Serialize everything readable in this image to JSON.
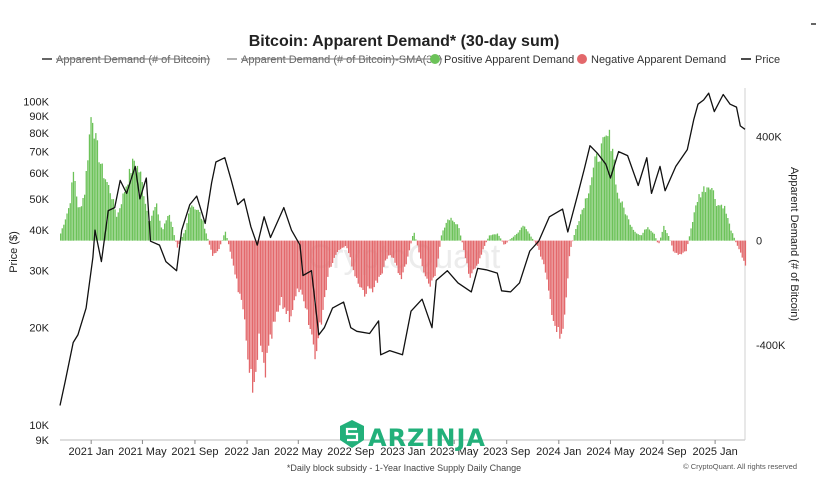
{
  "chart_data": {
    "type": "bar",
    "title": "Bitcoin: Apparent Demand* (30-day sum)",
    "footnote": "*Daily block subsidy - 1-Year Inactive Supply Daily Change",
    "credit": "© CryptoQuant. All rights reserved",
    "watermark": "CryptoQuant",
    "logo_text": "ARZINJA",
    "legend": [
      {
        "label": "Apparent Demand (# of Bitcoin)",
        "marker": "line",
        "color": "#333333",
        "struck": true
      },
      {
        "label": "Apparent Demand (# of Bitcoin)-SMA(30)",
        "marker": "line",
        "color": "#999999",
        "struck": true
      },
      {
        "label": "Positive Apparent Demand",
        "marker": "dot",
        "color": "#6cc259"
      },
      {
        "label": "Negative Apparent Demand",
        "marker": "dot",
        "color": "#e3686b"
      },
      {
        "label": "Price",
        "marker": "line",
        "color": "#111111"
      }
    ],
    "legend_position": "top",
    "colors": {
      "positive": "#6cc259",
      "negative": "#e3686b",
      "price": "#111111"
    },
    "ylabel_left": "Price ($)",
    "ylabel_right": "Apparent Demand (# of Bitcoin)",
    "y_left": {
      "scale": "log",
      "range": [
        9000,
        110000
      ],
      "ticks": [
        {
          "value": 9000,
          "label": "9K"
        },
        {
          "value": 10000,
          "label": "10K"
        },
        {
          "value": 20000,
          "label": "20K"
        },
        {
          "value": 30000,
          "label": "30K"
        },
        {
          "value": 40000,
          "label": "40K"
        },
        {
          "value": 50000,
          "label": "50K"
        },
        {
          "value": 60000,
          "label": "60K"
        },
        {
          "value": 70000,
          "label": "70K"
        },
        {
          "value": 80000,
          "label": "80K"
        },
        {
          "value": 90000,
          "label": "90K"
        },
        {
          "value": 100000,
          "label": "100K"
        }
      ]
    },
    "y_right": {
      "scale": "linear",
      "range": [
        -764000,
        585000
      ],
      "ticks": [
        {
          "value": 400000,
          "label": "400K"
        },
        {
          "value": 0,
          "label": "0"
        },
        {
          "value": -400000,
          "label": "-400K"
        }
      ]
    },
    "x_range": [
      "2020-10-20",
      "2025-03-12"
    ],
    "x_ticks": [
      {
        "date": "2021-01-01",
        "label": "2021 Jan"
      },
      {
        "date": "2021-05-01",
        "label": "2021 May"
      },
      {
        "date": "2021-09-01",
        "label": "2021 Sep"
      },
      {
        "date": "2022-01-01",
        "label": "2022 Jan"
      },
      {
        "date": "2022-05-01",
        "label": "2022 May"
      },
      {
        "date": "2022-09-01",
        "label": "2022 Sep"
      },
      {
        "date": "2023-01-01",
        "label": "2023 Jan"
      },
      {
        "date": "2023-05-01",
        "label": "2023 May"
      },
      {
        "date": "2023-09-01",
        "label": "2023 Sep"
      },
      {
        "date": "2024-01-01",
        "label": "2024 Jan"
      },
      {
        "date": "2024-05-01",
        "label": "2024 May"
      },
      {
        "date": "2024-09-01",
        "label": "2024 Sep"
      },
      {
        "date": "2025-01-01",
        "label": "2025 Jan"
      }
    ],
    "series": [
      {
        "name": "Apparent Demand (# of Bitcoin)",
        "chart": "bar",
        "axis": "right",
        "points": [
          [
            "2020-10-20",
            30000
          ],
          [
            "2020-11-10",
            150000
          ],
          [
            "2020-11-20",
            300000
          ],
          [
            "2020-12-01",
            120000
          ],
          [
            "2020-12-15",
            200000
          ],
          [
            "2021-01-01",
            560000
          ],
          [
            "2021-01-10",
            420000
          ],
          [
            "2021-01-25",
            300000
          ],
          [
            "2021-02-15",
            200000
          ],
          [
            "2021-03-01",
            100000
          ],
          [
            "2021-03-25",
            250000
          ],
          [
            "2021-04-10",
            340000
          ],
          [
            "2021-04-25",
            280000
          ],
          [
            "2021-05-15",
            80000
          ],
          [
            "2021-06-01",
            150000
          ],
          [
            "2021-06-15",
            40000
          ],
          [
            "2021-07-01",
            120000
          ],
          [
            "2021-07-20",
            -30000
          ],
          [
            "2021-08-10",
            50000
          ],
          [
            "2021-08-20",
            160000
          ],
          [
            "2021-09-10",
            120000
          ],
          [
            "2021-09-20",
            70000
          ],
          [
            "2021-10-10",
            -60000
          ],
          [
            "2021-10-25",
            -40000
          ],
          [
            "2021-11-10",
            40000
          ],
          [
            "2021-12-01",
            -120000
          ],
          [
            "2021-12-20",
            -300000
          ],
          [
            "2022-01-05",
            -520000
          ],
          [
            "2022-01-15",
            -680000
          ],
          [
            "2022-01-28",
            -420000
          ],
          [
            "2022-02-10",
            -560000
          ],
          [
            "2022-03-01",
            -380000
          ],
          [
            "2022-03-20",
            -260000
          ],
          [
            "2022-04-10",
            -320000
          ],
          [
            "2022-05-01",
            -200000
          ],
          [
            "2022-05-20",
            -320000
          ],
          [
            "2022-06-10",
            -480000
          ],
          [
            "2022-06-25",
            -300000
          ],
          [
            "2022-07-10",
            -120000
          ],
          [
            "2022-08-01",
            -40000
          ],
          [
            "2022-08-20",
            -20000
          ],
          [
            "2022-09-10",
            -150000
          ],
          [
            "2022-10-01",
            -220000
          ],
          [
            "2022-10-20",
            -200000
          ],
          [
            "2022-11-10",
            -150000
          ],
          [
            "2022-11-25",
            -60000
          ],
          [
            "2022-12-10",
            -80000
          ],
          [
            "2022-12-25",
            -160000
          ],
          [
            "2023-01-10",
            -80000
          ],
          [
            "2023-01-25",
            40000
          ],
          [
            "2023-02-05",
            -40000
          ],
          [
            "2023-02-15",
            -120000
          ],
          [
            "2023-03-01",
            -200000
          ],
          [
            "2023-03-20",
            -120000
          ],
          [
            "2023-04-01",
            40000
          ],
          [
            "2023-04-20",
            100000
          ],
          [
            "2023-05-10",
            60000
          ],
          [
            "2023-05-25",
            -60000
          ],
          [
            "2023-06-05",
            -150000
          ],
          [
            "2023-06-20",
            -120000
          ],
          [
            "2023-07-01",
            -60000
          ],
          [
            "2023-07-20",
            20000
          ],
          [
            "2023-08-10",
            30000
          ],
          [
            "2023-08-25",
            -20000
          ],
          [
            "2023-09-10",
            10000
          ],
          [
            "2023-09-25",
            30000
          ],
          [
            "2023-10-10",
            70000
          ],
          [
            "2023-10-25",
            20000
          ],
          [
            "2023-11-10",
            -20000
          ],
          [
            "2023-11-25",
            -100000
          ],
          [
            "2023-12-10",
            -250000
          ],
          [
            "2023-12-25",
            -380000
          ],
          [
            "2024-01-05",
            -430000
          ],
          [
            "2024-01-15",
            -300000
          ],
          [
            "2024-01-25",
            -50000
          ],
          [
            "2024-02-10",
            60000
          ],
          [
            "2024-02-25",
            140000
          ],
          [
            "2024-03-10",
            220000
          ],
          [
            "2024-03-25",
            330000
          ],
          [
            "2024-04-10",
            390000
          ],
          [
            "2024-04-25",
            440000
          ],
          [
            "2024-05-05",
            400000
          ],
          [
            "2024-05-15",
            200000
          ],
          [
            "2024-05-30",
            140000
          ],
          [
            "2024-06-10",
            90000
          ],
          [
            "2024-06-25",
            40000
          ],
          [
            "2024-07-10",
            20000
          ],
          [
            "2024-07-25",
            60000
          ],
          [
            "2024-08-10",
            30000
          ],
          [
            "2024-08-20",
            -20000
          ],
          [
            "2024-09-01",
            60000
          ],
          [
            "2024-09-15",
            10000
          ],
          [
            "2024-09-25",
            -50000
          ],
          [
            "2024-10-10",
            -60000
          ],
          [
            "2024-10-25",
            -40000
          ],
          [
            "2024-11-05",
            60000
          ],
          [
            "2024-11-20",
            180000
          ],
          [
            "2024-12-05",
            220000
          ],
          [
            "2024-12-20",
            240000
          ],
          [
            "2025-01-05",
            150000
          ],
          [
            "2025-01-20",
            150000
          ],
          [
            "2025-02-05",
            50000
          ],
          [
            "2025-02-20",
            -20000
          ],
          [
            "2025-03-05",
            -70000
          ],
          [
            "2025-03-12",
            -100000
          ]
        ]
      },
      {
        "name": "Price",
        "chart": "line",
        "axis": "left",
        "points": [
          [
            "2020-10-20",
            11500
          ],
          [
            "2020-11-01",
            13600
          ],
          [
            "2020-11-20",
            18000
          ],
          [
            "2020-12-01",
            19000
          ],
          [
            "2020-12-20",
            23000
          ],
          [
            "2021-01-05",
            33000
          ],
          [
            "2021-01-10",
            40000
          ],
          [
            "2021-01-25",
            32000
          ],
          [
            "2021-02-10",
            46000
          ],
          [
            "2021-02-25",
            47000
          ],
          [
            "2021-03-10",
            57000
          ],
          [
            "2021-03-25",
            52000
          ],
          [
            "2021-04-14",
            63000
          ],
          [
            "2021-04-25",
            50000
          ],
          [
            "2021-05-10",
            58000
          ],
          [
            "2021-05-20",
            37000
          ],
          [
            "2021-06-10",
            36000
          ],
          [
            "2021-06-25",
            32000
          ],
          [
            "2021-07-20",
            30000
          ],
          [
            "2021-08-01",
            40000
          ],
          [
            "2021-08-20",
            48000
          ],
          [
            "2021-09-05",
            51000
          ],
          [
            "2021-09-25",
            42000
          ],
          [
            "2021-10-10",
            56000
          ],
          [
            "2021-10-20",
            65000
          ],
          [
            "2021-11-10",
            67000
          ],
          [
            "2021-11-25",
            57000
          ],
          [
            "2021-12-10",
            48000
          ],
          [
            "2021-12-25",
            50000
          ],
          [
            "2022-01-10",
            41000
          ],
          [
            "2022-01-25",
            36000
          ],
          [
            "2022-02-10",
            44000
          ],
          [
            "2022-02-25",
            38000
          ],
          [
            "2022-03-28",
            47000
          ],
          [
            "2022-04-15",
            40000
          ],
          [
            "2022-05-05",
            36000
          ],
          [
            "2022-05-12",
            29000
          ],
          [
            "2022-06-01",
            30000
          ],
          [
            "2022-06-18",
            19000
          ],
          [
            "2022-07-01",
            20000
          ],
          [
            "2022-07-20",
            23000
          ],
          [
            "2022-08-15",
            24000
          ],
          [
            "2022-09-01",
            20000
          ],
          [
            "2022-09-15",
            19500
          ],
          [
            "2022-10-15",
            19200
          ],
          [
            "2022-11-05",
            21000
          ],
          [
            "2022-11-10",
            16500
          ],
          [
            "2022-12-01",
            17000
          ],
          [
            "2022-12-31",
            16500
          ],
          [
            "2023-01-20",
            22500
          ],
          [
            "2023-02-15",
            24500
          ],
          [
            "2023-03-10",
            20000
          ],
          [
            "2023-03-20",
            28000
          ],
          [
            "2023-04-15",
            30000
          ],
          [
            "2023-05-10",
            27500
          ],
          [
            "2023-06-10",
            25800
          ],
          [
            "2023-06-25",
            30500
          ],
          [
            "2023-07-15",
            30200
          ],
          [
            "2023-08-10",
            29500
          ],
          [
            "2023-08-20",
            26000
          ],
          [
            "2023-09-10",
            25800
          ],
          [
            "2023-10-01",
            27500
          ],
          [
            "2023-10-25",
            34500
          ],
          [
            "2023-11-15",
            37000
          ],
          [
            "2023-12-10",
            44000
          ],
          [
            "2024-01-10",
            46500
          ],
          [
            "2024-01-22",
            39500
          ],
          [
            "2024-02-15",
            52000
          ],
          [
            "2024-03-01",
            62000
          ],
          [
            "2024-03-14",
            73000
          ],
          [
            "2024-04-01",
            69000
          ],
          [
            "2024-04-20",
            64000
          ],
          [
            "2024-05-01",
            58000
          ],
          [
            "2024-05-20",
            70000
          ],
          [
            "2024-06-10",
            68000
          ],
          [
            "2024-07-05",
            55000
          ],
          [
            "2024-07-25",
            67000
          ],
          [
            "2024-08-05",
            52000
          ],
          [
            "2024-08-25",
            63000
          ],
          [
            "2024-09-06",
            53000
          ],
          [
            "2024-10-01",
            63000
          ],
          [
            "2024-10-28",
            71000
          ],
          [
            "2024-11-12",
            88000
          ],
          [
            "2024-11-22",
            98000
          ],
          [
            "2024-12-05",
            101000
          ],
          [
            "2024-12-17",
            106000
          ],
          [
            "2024-12-30",
            93000
          ],
          [
            "2025-01-20",
            105000
          ],
          [
            "2025-02-05",
            98000
          ],
          [
            "2025-02-20",
            96000
          ],
          [
            "2025-03-01",
            84000
          ],
          [
            "2025-03-12",
            82000
          ]
        ]
      }
    ]
  }
}
